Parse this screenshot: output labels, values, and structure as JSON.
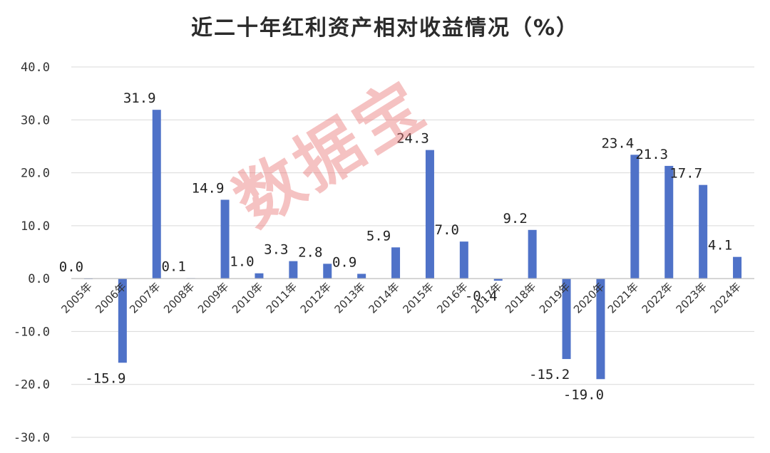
{
  "chart_data": {
    "type": "bar",
    "title": "近二十年红利资产相对收益情况（%）",
    "categories": [
      "2005年",
      "2006年",
      "2007年",
      "2008年",
      "2009年",
      "2010年",
      "2011年",
      "2012年",
      "2013年",
      "2014年",
      "2015年",
      "2016年",
      "2017年",
      "2018年",
      "2019年",
      "2020年",
      "2021年",
      "2022年",
      "2023年",
      "2024年"
    ],
    "values": [
      0.0,
      -15.9,
      31.9,
      0.1,
      14.9,
      1.0,
      3.3,
      2.8,
      0.9,
      5.9,
      24.3,
      7.0,
      -0.4,
      9.2,
      -15.2,
      -19.0,
      23.4,
      21.3,
      17.7,
      4.1
    ],
    "data_labels": [
      "0.0",
      "-15.9",
      "31.9",
      "0.1",
      "14.9",
      "1.0",
      "3.3",
      "2.8",
      "0.9",
      "5.9",
      "24.3",
      "7.0",
      "-0.4",
      "9.2",
      "-15.2",
      "-19.0",
      "23.4",
      "21.3",
      "17.7",
      "4.1"
    ],
    "y_ticks": [
      "40.0",
      "30.0",
      "20.0",
      "10.0",
      "0.0",
      "-10.0",
      "-20.0",
      "-30.0"
    ],
    "ylim": [
      -30,
      40
    ],
    "grid": true,
    "legend": "none",
    "bar_color": "#4f72c8",
    "grid_color": "#d9d9d9"
  },
  "watermark": "数据宝"
}
